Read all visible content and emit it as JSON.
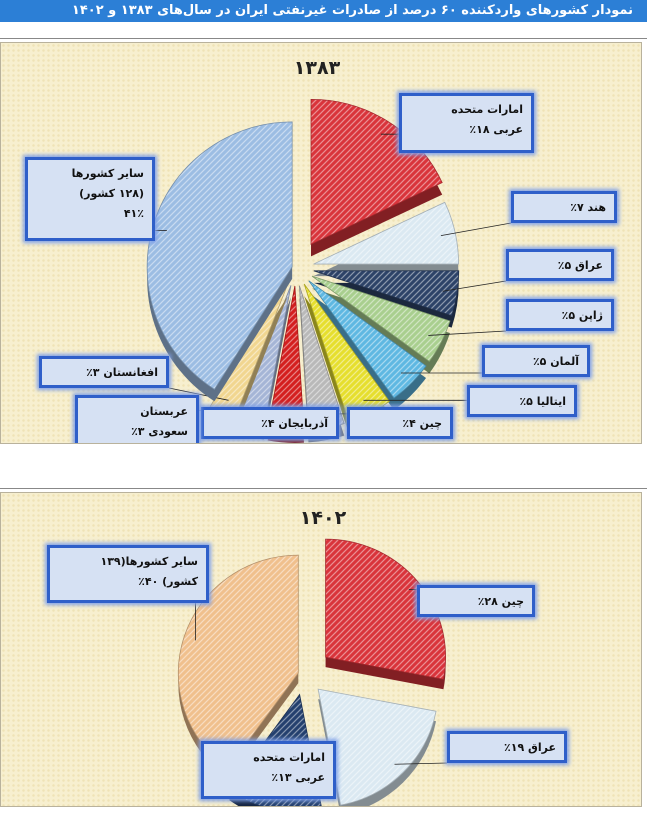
{
  "header": {
    "title": "نمودار کشورهای وارد‌کننده ۶۰ درصد از صادرات غیرنفتی ایران در سال‌های ۱۳۸۳ و ۱۴۰۲"
  },
  "chart_data": [
    {
      "type": "pie",
      "title": "۱۳۸۳",
      "categories": [
        "امارات متحده عربی",
        "هند",
        "عراق",
        "ژاپن",
        "آلمان",
        "ایتالیا",
        "چین",
        "آذربایجان",
        "عربستان سعودی",
        "افغانستان",
        "سایر کشورها (۱۲۸ کشور)"
      ],
      "values": [
        18,
        7,
        5,
        5,
        5,
        5,
        4,
        4,
        3,
        3,
        41
      ],
      "colors": [
        "#d9343b",
        "#dbe9f2",
        "#2d4368",
        "#a9cf8f",
        "#5fb8e2",
        "#e6df2e",
        "#b9b9b9",
        "#d41f1f",
        "#a5b5d6",
        "#f1d690",
        "#9cbde3"
      ],
      "labels": [
        {
          "lines": [
            "امارات متحده",
            "عربی ۱۸٪"
          ]
        },
        {
          "lines": [
            "هند ۷٪"
          ]
        },
        {
          "lines": [
            "عراق ۵٪"
          ]
        },
        {
          "lines": [
            "ژاپن ۵٪"
          ]
        },
        {
          "lines": [
            "آلمان ۵٪"
          ]
        },
        {
          "lines": [
            "ایتالیا ۵٪"
          ]
        },
        {
          "lines": [
            "چین ۴٪"
          ]
        },
        {
          "lines": [
            "آذربایجان ۴٪"
          ]
        },
        {
          "lines": [
            "عربستان",
            "سعودی ۳٪"
          ]
        },
        {
          "lines": [
            "افغانستان ۳٪"
          ]
        },
        {
          "lines": [
            "سایر کشورها",
            "(۱۲۸ کشور)",
            "۴۱٪"
          ]
        }
      ]
    },
    {
      "type": "pie",
      "title": "۱۴۰۲",
      "categories": [
        "چین",
        "عراق",
        "امارات متحده عربی",
        "سایر کشورها(۱۳۹ کشور)"
      ],
      "values": [
        28,
        19,
        13,
        40
      ],
      "colors": [
        "#d9343b",
        "#dbe9f2",
        "#24406e",
        "#f0c08d"
      ],
      "labels": [
        {
          "lines": [
            "چین ۲۸٪"
          ]
        },
        {
          "lines": [
            "عراق ۱۹٪"
          ]
        },
        {
          "lines": [
            "امارات متحده",
            "عربی ۱۳٪"
          ]
        },
        {
          "lines": [
            "سایر کشورها(۱۳۹",
            "کشور) ۴۰٪"
          ]
        }
      ]
    }
  ]
}
